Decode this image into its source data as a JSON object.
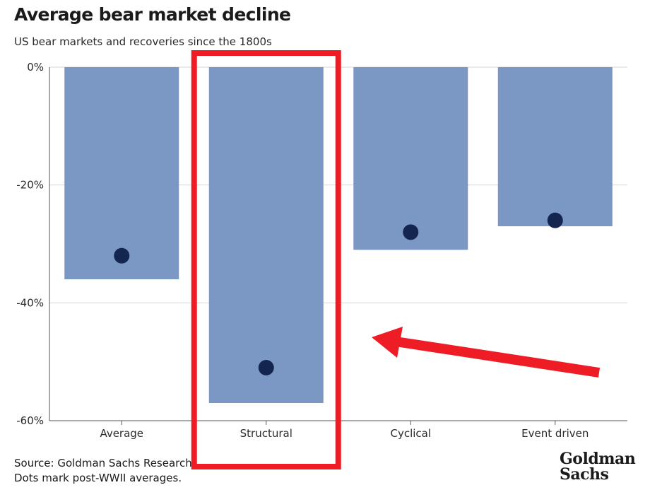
{
  "title": "Average bear market decline",
  "subtitle": "US bear markets and recoveries since the 1800s",
  "footer": {
    "source": "Source: Goldman Sachs Research",
    "note": "Dots mark post-WWII averages."
  },
  "logo": {
    "line1": "Goldman",
    "line2": "Sachs"
  },
  "colors": {
    "bar": "#7b97c4",
    "dot": "#14264f",
    "highlight": "#ee1c24",
    "grid": "#d6d6d6",
    "axis": "#555555"
  },
  "annotations": {
    "highlight_category": "Structural",
    "arrow": true
  },
  "chart_data": {
    "type": "bar",
    "categories": [
      "Average",
      "Structural",
      "Cyclical",
      "Event driven"
    ],
    "series": [
      {
        "values": [
          -36,
          -57,
          -31,
          -27
        ]
      },
      {
        "name": "post-WWII averages",
        "marker": "dot",
        "values": [
          -32,
          -51,
          -28,
          -26
        ]
      }
    ],
    "ylim": [
      -60,
      0
    ],
    "yticks": [
      0,
      -20,
      -40,
      -60
    ],
    "ytick_labels": [
      "0%",
      "-20%",
      "-40%",
      "-60%"
    ],
    "grid": true
  }
}
